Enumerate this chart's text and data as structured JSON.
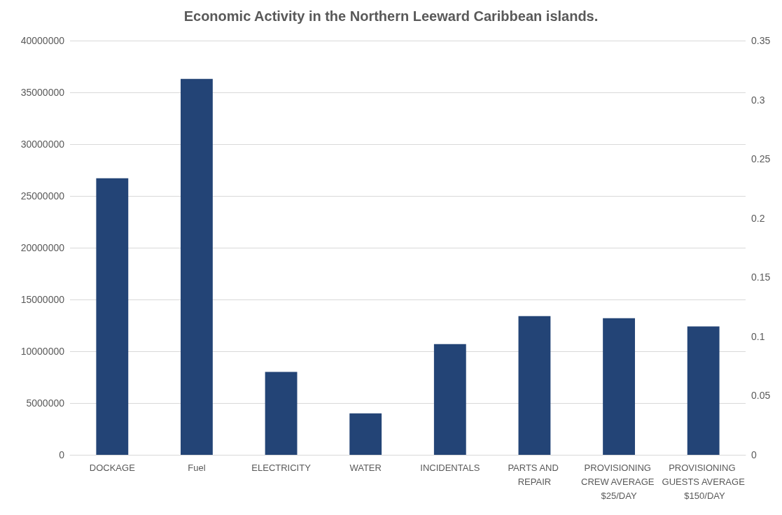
{
  "chart_data": {
    "type": "bar",
    "title": "Economic Activity in the Northern Leeward Caribbean islands.",
    "categories": [
      "DOCKAGE",
      "Fuel",
      "ELECTRICITY",
      "WATER",
      "INCIDENTALS",
      "PARTS AND REPAIR",
      "PROVISIONING CREW AVERAGE $25/DAY",
      "PROVISIONING GUESTS AVERAGE $150/DAY"
    ],
    "values": [
      26700000,
      36300000,
      8000000,
      4000000,
      10700000,
      13400000,
      13200000,
      12400000
    ],
    "color": "#234476",
    "ylim": [
      0,
      40000000
    ],
    "yticks": [
      0,
      5000000,
      10000000,
      15000000,
      20000000,
      25000000,
      30000000,
      35000000,
      40000000
    ],
    "y2lim": [
      0,
      0.35
    ],
    "y2ticks": [
      0,
      0.05,
      0.1,
      0.15,
      0.2,
      0.25,
      0.3,
      0.35
    ],
    "grid": "y"
  }
}
